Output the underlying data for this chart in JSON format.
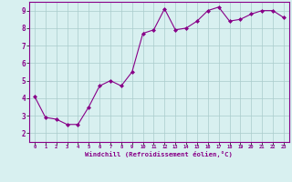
{
  "x": [
    0,
    1,
    2,
    3,
    4,
    5,
    6,
    7,
    8,
    9,
    10,
    11,
    12,
    13,
    14,
    15,
    16,
    17,
    18,
    19,
    20,
    21,
    22,
    23
  ],
  "y": [
    4.1,
    2.9,
    2.8,
    2.5,
    2.5,
    3.5,
    4.7,
    5.0,
    4.7,
    5.5,
    7.7,
    7.9,
    9.1,
    7.9,
    8.0,
    8.4,
    9.0,
    9.2,
    8.4,
    8.5,
    8.8,
    9.0,
    9.0,
    8.6
  ],
  "xlabel": "Windchill (Refroidissement éolien,°C)",
  "xlim": [
    -0.5,
    23.5
  ],
  "ylim": [
    1.5,
    9.5
  ],
  "yticks": [
    2,
    3,
    4,
    5,
    6,
    7,
    8,
    9
  ],
  "xticks": [
    0,
    1,
    2,
    3,
    4,
    5,
    6,
    7,
    8,
    9,
    10,
    11,
    12,
    13,
    14,
    15,
    16,
    17,
    18,
    19,
    20,
    21,
    22,
    23
  ],
  "line_color": "#880088",
  "marker": "D",
  "bg_color": "#d8f0f0",
  "grid_color": "#aacccc",
  "axis_label_color": "#880088",
  "tick_color": "#880088",
  "spine_color": "#880088",
  "xtick_fontsize": 4.0,
  "ytick_fontsize": 5.5,
  "xlabel_fontsize": 5.2
}
